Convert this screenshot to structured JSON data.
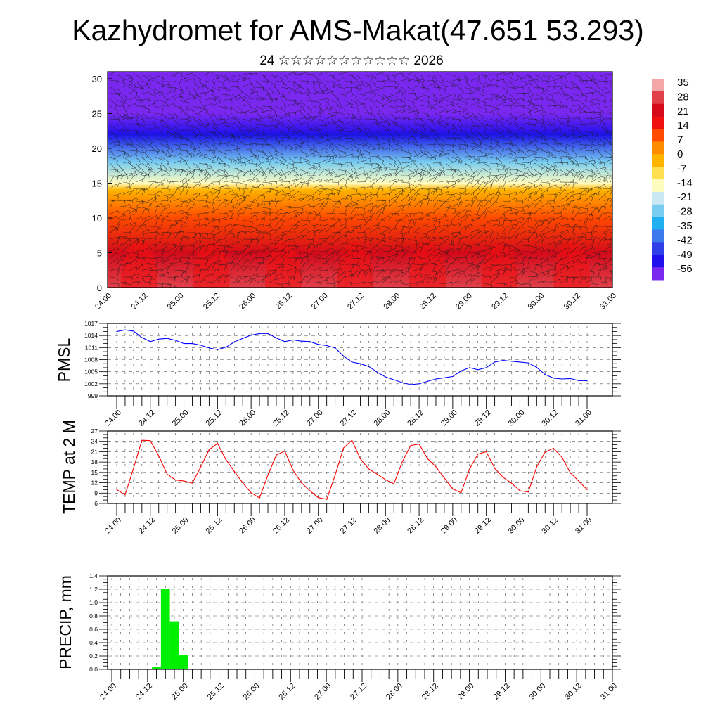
{
  "header": {
    "title": "Kazhydromet for AMS-Makat(47.651 53.293)",
    "subtitle": "24 ☆☆☆☆☆☆☆☆☆☆☆ 2026"
  },
  "time_labels": [
    "24.00",
    "24.12",
    "25.00",
    "25.12",
    "26.00",
    "26.12",
    "27.00",
    "27.12",
    "28.00",
    "28.12",
    "29.00",
    "29.12",
    "30.00",
    "30.12",
    "31.00"
  ],
  "chart_data": [
    {
      "type": "heatmap",
      "name": "vertical-cross-section",
      "xlabel": "",
      "ylabel": "",
      "x_tick_labels": [
        "24.00",
        "24.12",
        "25.00",
        "25.12",
        "26.00",
        "26.12",
        "27.00",
        "27.12",
        "28.00",
        "28.12",
        "29.00",
        "29.12",
        "30.00",
        "30.12",
        "31.00"
      ],
      "y_ticks": [
        0,
        5,
        10,
        15,
        20,
        25,
        30
      ],
      "ylim": [
        0,
        31
      ],
      "overlay": "wind barbs",
      "colorbar": {
        "labels": [
          35,
          28,
          21,
          14,
          7,
          0,
          -7,
          -14,
          -21,
          -28,
          -35,
          -42,
          -49,
          -56
        ],
        "colors": [
          "#f4a6a6",
          "#e0404a",
          "#d40a1a",
          "#f01010",
          "#ff4a00",
          "#ff8c00",
          "#ffb400",
          "#ffe050",
          "#fffcc0",
          "#c8e8f4",
          "#78ccf0",
          "#20b0f0",
          "#3c78ee",
          "#3040e8",
          "#2010ee",
          "#7a28f0"
        ]
      },
      "temperature_by_height": [
        {
          "height": 0,
          "value": 30
        },
        {
          "height": 5,
          "value": 22
        },
        {
          "height": 10,
          "value": 10
        },
        {
          "height": 14,
          "value": 0
        },
        {
          "height": 15,
          "value": -14
        },
        {
          "height": 18,
          "value": -28
        },
        {
          "height": 21,
          "value": -42
        },
        {
          "height": 22,
          "value": -52
        },
        {
          "height": 25,
          "value": -56
        },
        {
          "height": 31,
          "value": -58
        }
      ]
    },
    {
      "type": "line",
      "name": "pmsl",
      "ylabel": "PMSL",
      "color": "#0000ff",
      "ylim": [
        999,
        1017
      ],
      "y_ticks": [
        999,
        1002,
        1005,
        1008,
        1011,
        1014,
        1017
      ],
      "x_tick_labels": [
        "24.00",
        "24.12",
        "25.00",
        "25.12",
        "26.00",
        "26.12",
        "27.00",
        "27.12",
        "28.00",
        "28.12",
        "29.00",
        "29.12",
        "30.00",
        "30.12",
        "31.00"
      ],
      "step_hours": 3,
      "values": [
        1015.0,
        1015.4,
        1015.1,
        1013.5,
        1012.5,
        1013.1,
        1013.3,
        1012.8,
        1012.0,
        1012.0,
        1011.6,
        1010.9,
        1010.5,
        1011.1,
        1012.4,
        1013.3,
        1014.1,
        1014.5,
        1014.5,
        1013.4,
        1012.5,
        1012.9,
        1012.6,
        1012.5,
        1011.8,
        1011.5,
        1010.9,
        1008.9,
        1007.4,
        1007.0,
        1006.3,
        1004.9,
        1003.7,
        1003.0,
        1002.3,
        1001.8,
        1002.0,
        1002.6,
        1003.2,
        1003.5,
        1003.8,
        1005.2,
        1006.0,
        1005.5,
        1006.0,
        1007.4,
        1007.8,
        1007.6,
        1007.4,
        1007.2,
        1006.1,
        1004.3,
        1003.4,
        1003.2,
        1003.3,
        1002.8,
        1002.8
      ]
    },
    {
      "type": "line",
      "name": "temp-2m",
      "ylabel": "TEMP at 2 M",
      "color": "#ff0000",
      "ylim": [
        6,
        27
      ],
      "y_ticks": [
        6,
        9,
        12,
        15,
        18,
        21,
        24,
        27
      ],
      "x_tick_labels": [
        "24.00",
        "24.12",
        "25.00",
        "25.12",
        "26.00",
        "26.12",
        "27.00",
        "27.12",
        "28.00",
        "28.12",
        "29.00",
        "29.12",
        "30.00",
        "30.12",
        "31.00"
      ],
      "step_hours": 3,
      "values": [
        10.0,
        8.5,
        16.2,
        24.3,
        24.2,
        19.8,
        14.5,
        12.8,
        12.5,
        11.9,
        16.6,
        21.6,
        23.4,
        18.7,
        15.3,
        12.0,
        9.1,
        7.6,
        14.2,
        20.0,
        21.2,
        15.6,
        12.0,
        9.7,
        7.7,
        7.2,
        14.2,
        22.1,
        24.3,
        19.0,
        16.0,
        14.5,
        12.9,
        11.7,
        18.1,
        22.8,
        23.2,
        19.0,
        16.6,
        13.4,
        10.2,
        9.1,
        16.0,
        20.3,
        21.0,
        16.2,
        13.6,
        11.9,
        9.7,
        9.3,
        16.6,
        20.9,
        22.0,
        19.4,
        14.9,
        12.5,
        10.0
      ]
    },
    {
      "type": "bar",
      "name": "precip",
      "ylabel": "PRECIP, mm",
      "color": "#00ee00",
      "ylim": [
        0,
        1.4
      ],
      "y_ticks": [
        "0.0",
        "0.2",
        "0.4",
        "0.6",
        "0.8",
        "1.0",
        "1.2",
        "1.4"
      ],
      "x_tick_labels": [
        "24.00",
        "24.12",
        "25.00",
        "25.12",
        "26.00",
        "26.12",
        "27.00",
        "27.12",
        "28.00",
        "28.12",
        "29.00",
        "29.12",
        "30.00",
        "30.12",
        "31.00"
      ],
      "step_hours": 3,
      "bars": [
        {
          "time": "24.15",
          "value": 0.04
        },
        {
          "time": "24.18",
          "value": 1.2
        },
        {
          "time": "24.21",
          "value": 0.72
        },
        {
          "time": "25.00",
          "value": 0.21
        },
        {
          "time": "28.15",
          "value": 0.01
        }
      ]
    }
  ]
}
